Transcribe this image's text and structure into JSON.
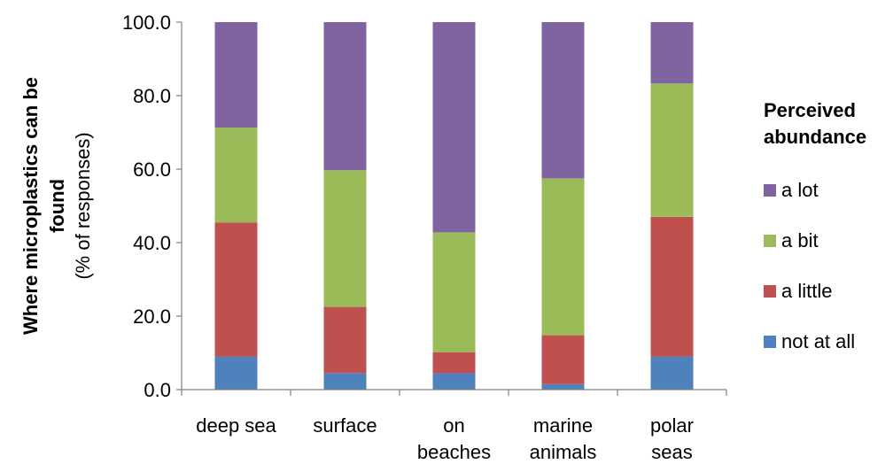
{
  "chart_data": {
    "type": "bar",
    "stacked": true,
    "categories": [
      [
        "deep sea"
      ],
      [
        "surface"
      ],
      [
        "on",
        "beaches"
      ],
      [
        "marine",
        "animals"
      ],
      [
        "polar",
        "seas"
      ]
    ],
    "ylabel_lines": [
      "Where microplastics can be",
      "found"
    ],
    "ylabel_sub": "(% of responses)",
    "ylim": [
      0,
      100
    ],
    "yticks": [
      0,
      20,
      40,
      60,
      80,
      100
    ],
    "ytick_labels": [
      "0.0",
      "20.0",
      "40.0",
      "60.0",
      "80.0",
      "100.0"
    ],
    "grid": false,
    "legend_position": "right",
    "legend_title_lines": [
      "Perceived",
      "abundance"
    ],
    "series": [
      {
        "name": "not at all",
        "color": "#4f81bd",
        "values": [
          9.0,
          4.5,
          4.5,
          1.5,
          9.0
        ]
      },
      {
        "name": "a little",
        "color": "#c0504d",
        "values": [
          36.5,
          18.0,
          5.7,
          13.3,
          38.0
        ]
      },
      {
        "name": "a bit",
        "color": "#9bbb59",
        "values": [
          25.8,
          37.2,
          32.6,
          42.7,
          36.3
        ]
      },
      {
        "name": "a lot",
        "color": "#8064a2",
        "values": [
          28.7,
          40.3,
          57.2,
          42.5,
          16.7
        ]
      }
    ]
  }
}
